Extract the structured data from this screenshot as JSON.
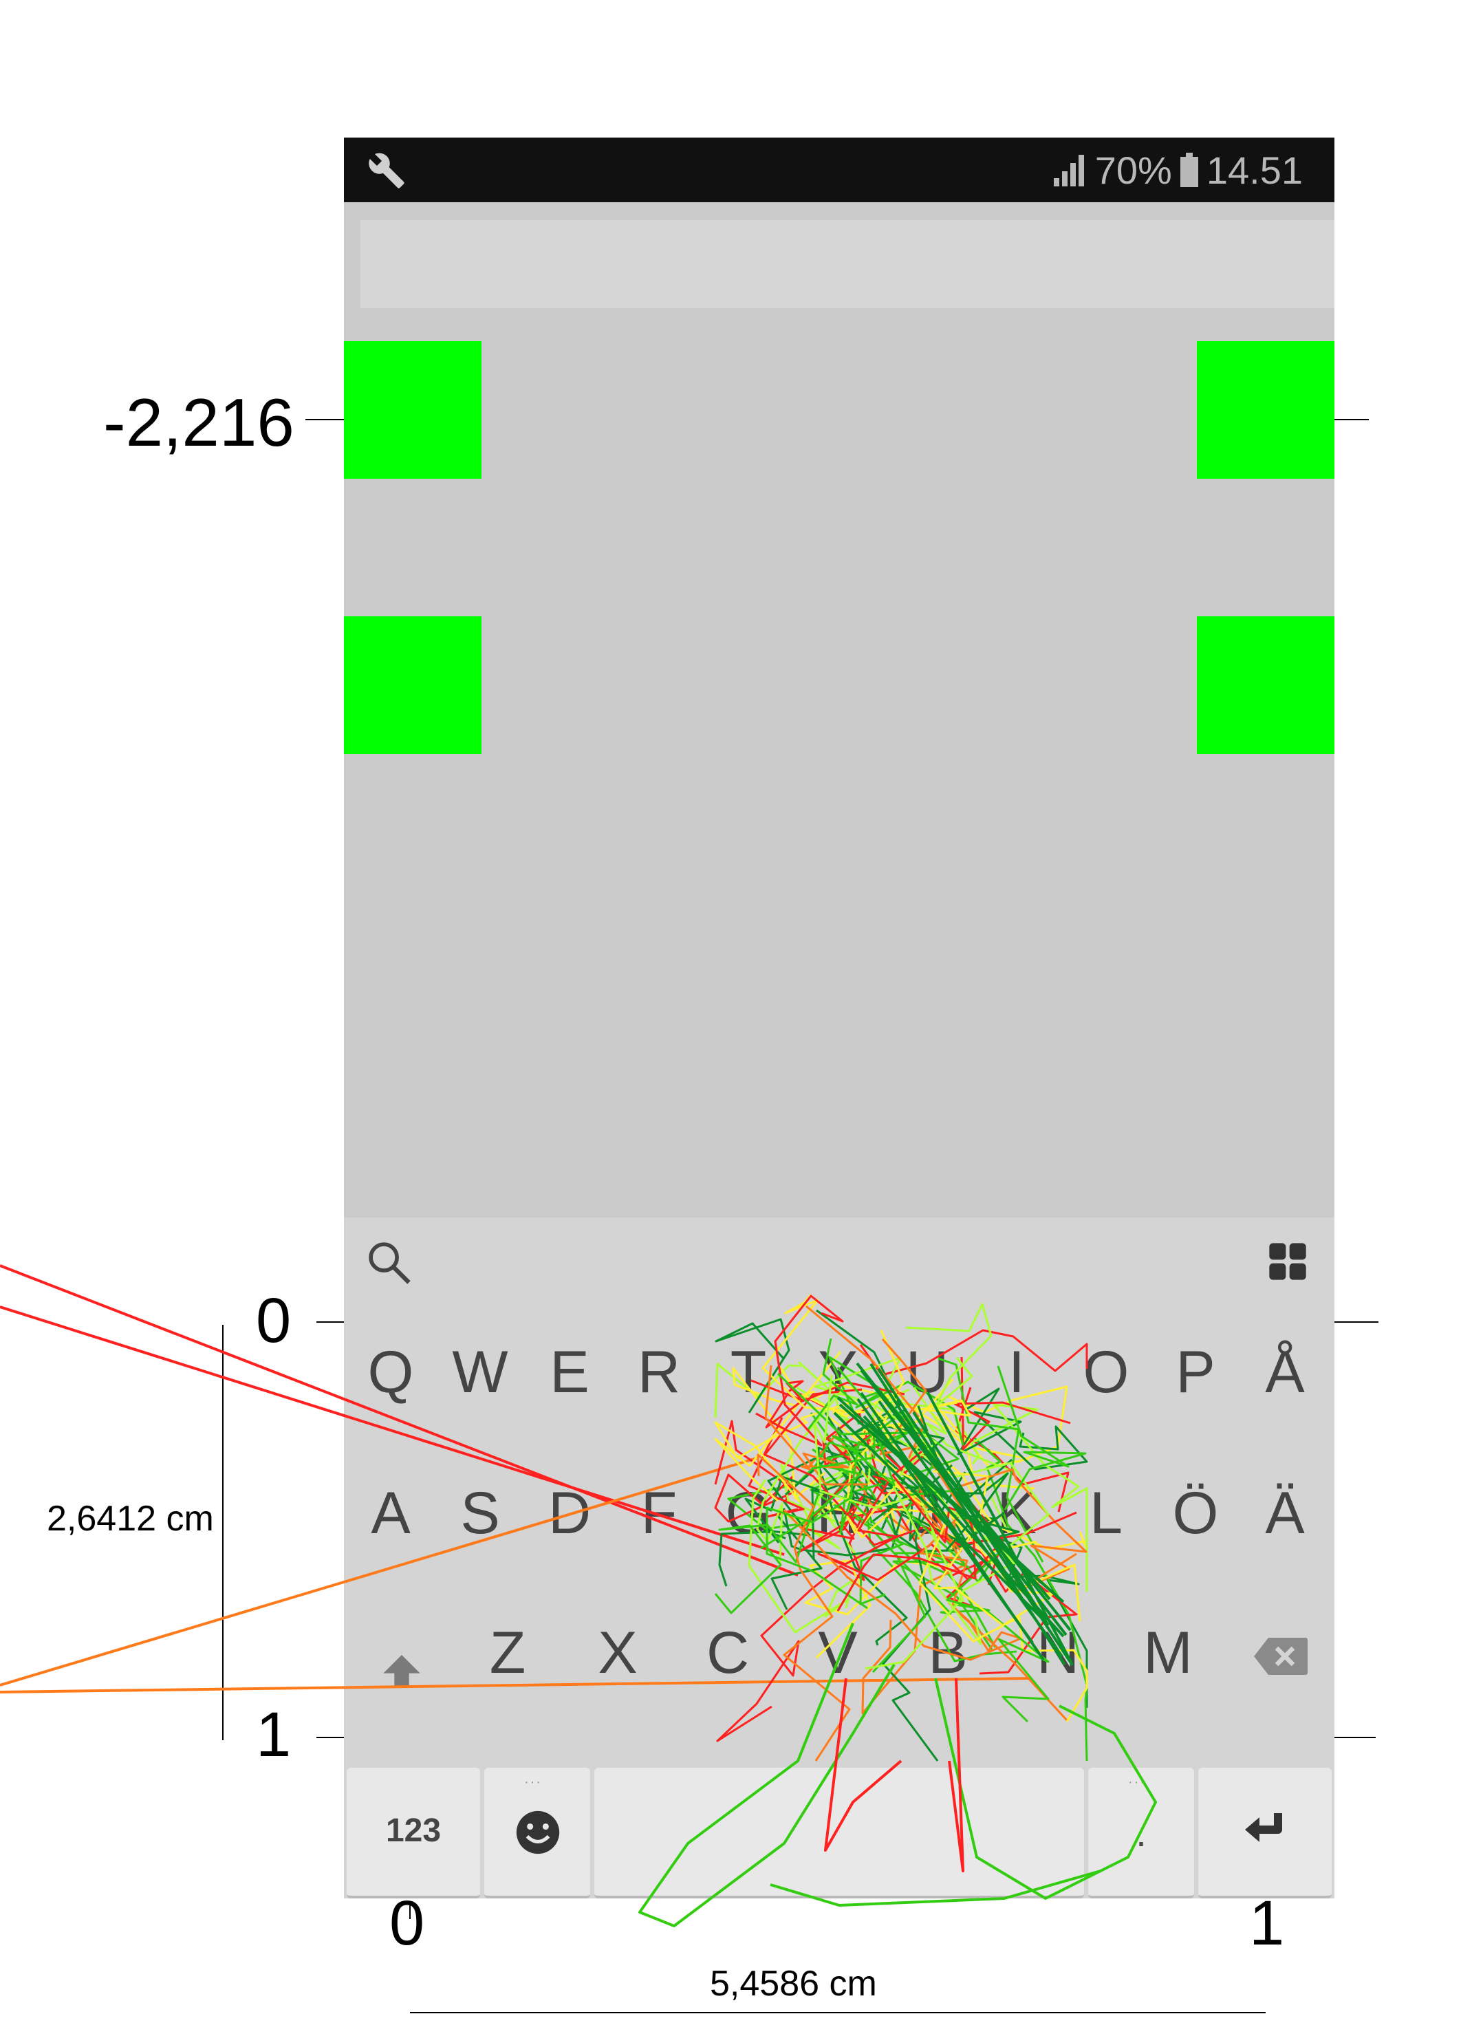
{
  "status_bar": {
    "left_icon": "wrench-icon",
    "signal_icon": "signal-icon",
    "battery_percent": "70%",
    "battery_icon": "battery-icon",
    "time": "14.51"
  },
  "keyboard": {
    "toolbar": {
      "search_icon": "search-icon",
      "menu_icon": "grid-icon"
    },
    "rows": [
      [
        "Q",
        "W",
        "E",
        "R",
        "T",
        "Y",
        "U",
        "I",
        "O",
        "P",
        "Å"
      ],
      [
        "A",
        "S",
        "D",
        "F",
        "G",
        "H",
        "J",
        "K",
        "L",
        "Ö",
        "Ä"
      ],
      [
        "Z",
        "X",
        "C",
        "V",
        "B",
        "N",
        "M"
      ]
    ],
    "shift_icon": "shift-icon",
    "backspace_icon": "backspace-icon",
    "numbers_key": "123",
    "emoji_icon": "smiley-icon",
    "period_key": ".",
    "enter_icon": "enter-icon"
  },
  "annotations": {
    "top_y_label": "-2,216",
    "y0_label": "0",
    "y1_label": "1",
    "x0_label": "0",
    "x1_label": "1",
    "height_label": "2,6412 cm",
    "width_label": "5,4586 cm"
  },
  "colors": {
    "target_green": "#00ff00",
    "trace_colors": [
      "#ff2020",
      "#ff7a1a",
      "#ffee33",
      "#aaff33",
      "#33cc11",
      "#0a8f2a"
    ]
  }
}
